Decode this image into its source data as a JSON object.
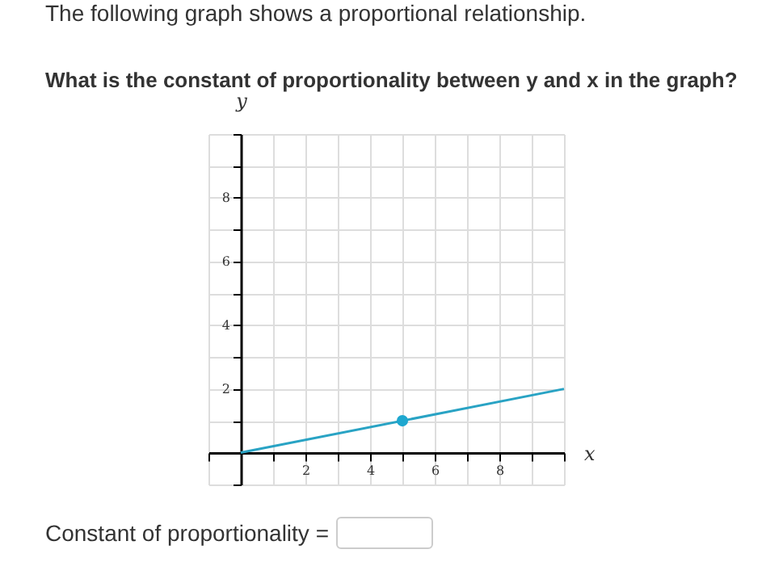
{
  "chart_data": {
    "type": "line",
    "title": "The following graph shows a proportional relationship.",
    "subtitle": "What is the constant of proportionality between y and x in the graph?",
    "xlabel": "x",
    "ylabel": "y",
    "xlim": [
      -1,
      10
    ],
    "ylim": [
      -1,
      10
    ],
    "xticks": [
      {
        "value": -1,
        "label": null
      },
      {
        "value": 0,
        "label": null
      },
      {
        "value": 1,
        "label": null
      },
      2,
      {
        "value": 3,
        "label": null
      },
      4,
      {
        "value": 5,
        "label": null
      },
      6,
      {
        "value": 7,
        "label": null
      },
      8,
      {
        "value": 9,
        "label": null
      },
      {
        "value": 10,
        "label": null
      }
    ],
    "yticks": [
      {
        "value": -1,
        "label": null
      },
      {
        "value": 0,
        "label": null
      },
      {
        "value": 1,
        "label": null
      },
      2,
      {
        "value": 3,
        "label": null
      },
      4,
      {
        "value": 5,
        "label": null
      },
      6,
      {
        "value": 7,
        "label": null
      },
      8,
      {
        "value": 9,
        "label": null
      },
      {
        "value": 10,
        "label": null
      }
    ],
    "grid": true,
    "series": [
      {
        "color": "#29a3c4",
        "x": [
          0,
          10
        ],
        "values": [
          0,
          2
        ]
      },
      {
        "type": "scatter",
        "color": "#1ea7cf",
        "x": [
          5
        ],
        "values": [
          1
        ],
        "marker": "circle"
      }
    ],
    "annotations": [
      "Constant of proportionality ="
    ]
  }
}
